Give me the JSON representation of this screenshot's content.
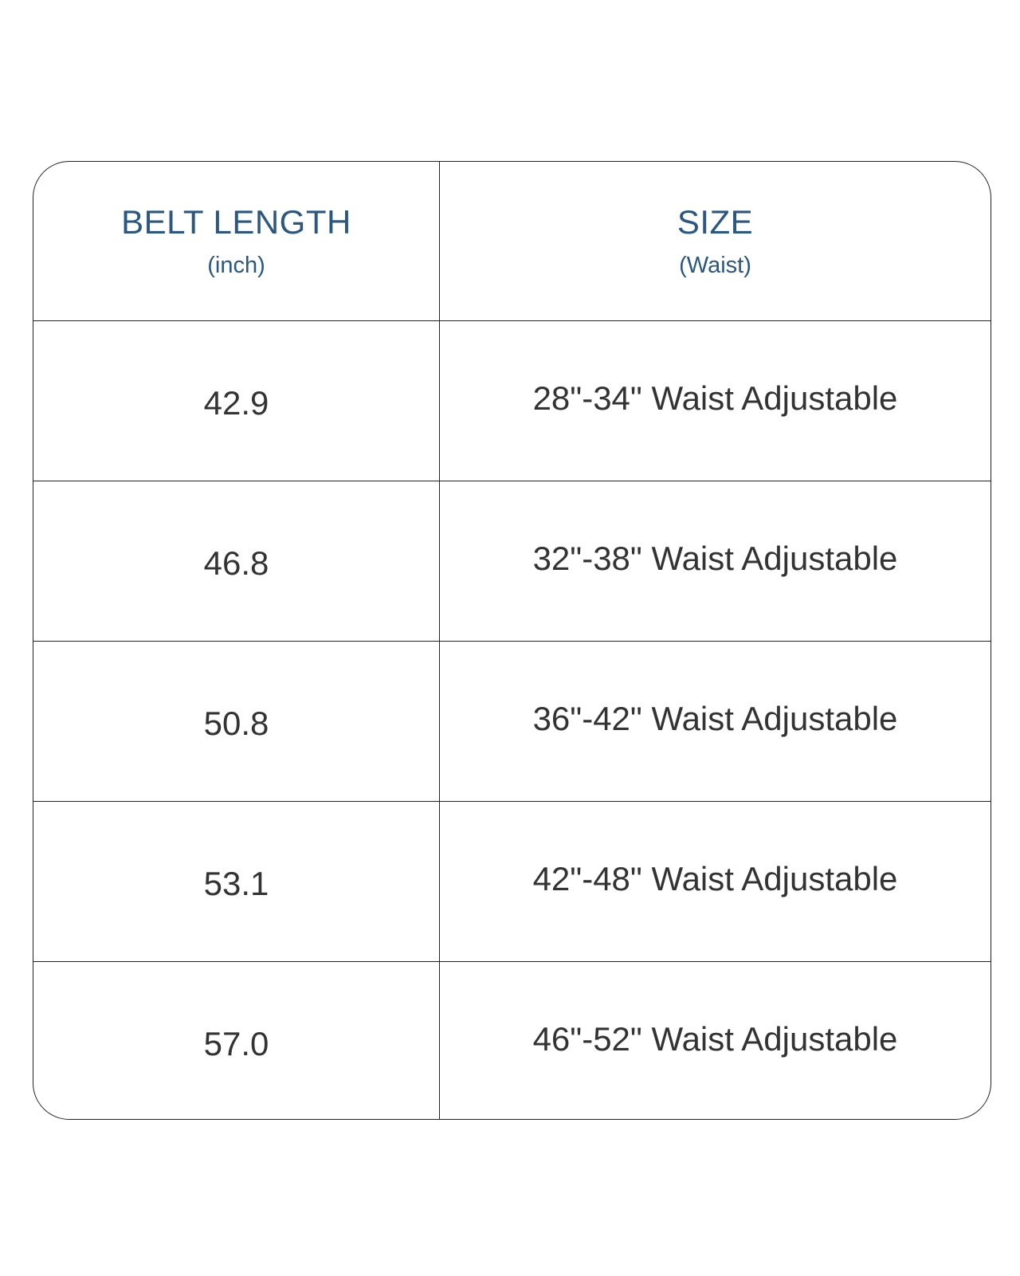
{
  "header": {
    "col1_title": "BELT LENGTH",
    "col1_unit": "(inch)",
    "col2_title": "SIZE",
    "col2_unit": "(Waist)"
  },
  "rows": [
    {
      "length": "42.9",
      "size": "28\"-34\" Waist Adjustable"
    },
    {
      "length": "46.8",
      "size": "32\"-38\" Waist Adjustable"
    },
    {
      "length": "50.8",
      "size": "36\"-42\" Waist Adjustable"
    },
    {
      "length": "53.1",
      "size": "42\"-48\" Waist Adjustable"
    },
    {
      "length": "57.0",
      "size": "46\"-52\" Waist Adjustable"
    }
  ],
  "colors": {
    "header_text": "#2b5780",
    "body_text": "#333333",
    "border": "#222222"
  }
}
